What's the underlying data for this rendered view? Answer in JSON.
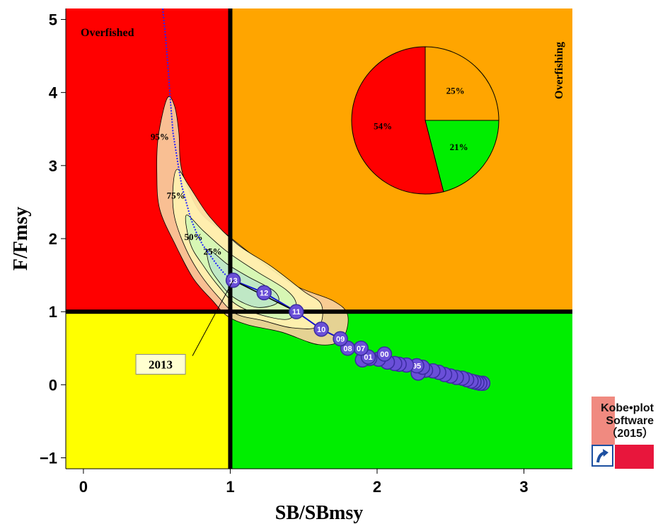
{
  "chart_data": {
    "type": "scatter",
    "xlabel": "SB/SBmsy",
    "ylabel": "F/Fmsy",
    "xlim": [
      -0.12,
      3.33
    ],
    "ylim": [
      -1.15,
      5.15
    ],
    "xticks": [
      "0",
      "1",
      "2",
      "3"
    ],
    "yticks": [
      "−1",
      "0",
      "1",
      "2",
      "3",
      "4",
      "5"
    ],
    "quadrants": {
      "overfished_label": "Overfished",
      "overfishing_label": "Overfishing",
      "colors": {
        "red": "#ff0000",
        "orange": "#ffa500",
        "yellow": "#ffff00",
        "green": "#00ee00"
      }
    },
    "reference_lines": {
      "x": 1,
      "y": 1
    },
    "contour_labels": [
      "95%",
      "75%",
      "50%",
      "25%"
    ],
    "contour_colors": [
      "#f8cfa0",
      "#fff2b0",
      "#d4f7b4",
      "#bde6c7"
    ],
    "final_year_label": "2013",
    "trajectory": [
      {
        "label": "",
        "x": 2.72,
        "y": 0.02
      },
      {
        "label": "",
        "x": 2.7,
        "y": 0.02
      },
      {
        "label": "",
        "x": 2.68,
        "y": 0.03
      },
      {
        "label": "",
        "x": 2.66,
        "y": 0.04
      },
      {
        "label": "",
        "x": 2.64,
        "y": 0.05
      },
      {
        "label": "",
        "x": 2.61,
        "y": 0.07
      },
      {
        "label": "",
        "x": 2.58,
        "y": 0.09
      },
      {
        "label": "",
        "x": 2.54,
        "y": 0.1
      },
      {
        "label": "",
        "x": 2.5,
        "y": 0.12
      },
      {
        "label": "",
        "x": 2.46,
        "y": 0.14
      },
      {
        "label": "",
        "x": 2.42,
        "y": 0.17
      },
      {
        "label": "",
        "x": 2.38,
        "y": 0.19
      },
      {
        "label": "",
        "x": 2.33,
        "y": 0.2
      },
      {
        "label": "",
        "x": 2.28,
        "y": 0.16
      },
      {
        "label": "",
        "x": 2.31,
        "y": 0.24
      },
      {
        "label": "95",
        "x": 2.27,
        "y": 0.26
      },
      {
        "label": "",
        "x": 2.2,
        "y": 0.27
      },
      {
        "label": "",
        "x": 2.15,
        "y": 0.28
      },
      {
        "label": "",
        "x": 2.12,
        "y": 0.29
      },
      {
        "label": "",
        "x": 2.07,
        "y": 0.31
      },
      {
        "label": "",
        "x": 2.01,
        "y": 0.35
      },
      {
        "label": "",
        "x": 1.95,
        "y": 0.36
      },
      {
        "label": "",
        "x": 1.9,
        "y": 0.34
      },
      {
        "label": "00",
        "x": 2.05,
        "y": 0.42
      },
      {
        "label": "01",
        "x": 1.94,
        "y": 0.38
      },
      {
        "label": "07",
        "x": 1.89,
        "y": 0.5
      },
      {
        "label": "08",
        "x": 1.8,
        "y": 0.5
      },
      {
        "label": "09",
        "x": 1.75,
        "y": 0.63
      },
      {
        "label": "10",
        "x": 1.62,
        "y": 0.76
      },
      {
        "label": "11",
        "x": 1.45,
        "y": 1.0
      },
      {
        "label": "12",
        "x": 1.23,
        "y": 1.26
      },
      {
        "label": "13",
        "x": 1.02,
        "y": 1.43
      }
    ],
    "projection_ci": [
      [
        0.54,
        5.15
      ],
      [
        0.55,
        4.95
      ],
      [
        0.56,
        4.75
      ],
      [
        0.57,
        4.5
      ],
      [
        0.58,
        4.25
      ],
      [
        0.59,
        3.95
      ],
      [
        0.6,
        3.7
      ],
      [
        0.61,
        3.45
      ],
      [
        0.63,
        3.2
      ],
      [
        0.65,
        2.95
      ],
      [
        0.67,
        2.72
      ],
      [
        0.7,
        2.5
      ],
      [
        0.73,
        2.28
      ],
      [
        0.77,
        2.08
      ],
      [
        0.81,
        1.92
      ],
      [
        0.86,
        1.78
      ],
      [
        0.91,
        1.64
      ],
      [
        0.96,
        1.52
      ],
      [
        1.0,
        1.45
      ]
    ],
    "pie": [
      {
        "label": "25%",
        "value": 25,
        "color": "#ffa500"
      },
      {
        "label": "21%",
        "value": 21,
        "color": "#00ee00"
      },
      {
        "label": "54%",
        "value": 54,
        "color": "#ff0000"
      }
    ]
  },
  "logo": {
    "line1": "Kobe•plot",
    "line2": "Software",
    "line3": "（2015）"
  }
}
